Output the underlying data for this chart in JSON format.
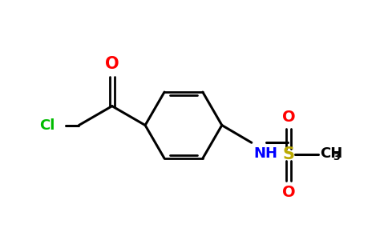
{
  "bg_color": "#ffffff",
  "bond_color": "#000000",
  "atom_colors": {
    "O": "#ff0000",
    "Cl": "#00bb00",
    "N": "#0000ff",
    "S": "#bbaa00",
    "C": "#000000",
    "H": "#000000"
  },
  "figsize": [
    4.84,
    3.0
  ],
  "dpi": 100,
  "xlim": [
    0,
    11
  ],
  "ylim": [
    0,
    6.5
  ]
}
